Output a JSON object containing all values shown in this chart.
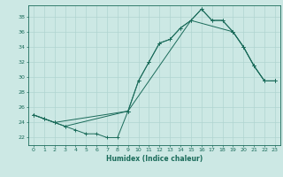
{
  "xlabel": "Humidex (Indice chaleur)",
  "bg_color": "#cce8e4",
  "line_color": "#1a6b5a",
  "grid_color": "#b0d4d0",
  "xlim": [
    -0.5,
    23.5
  ],
  "ylim": [
    21.0,
    39.5
  ],
  "xticks": [
    0,
    1,
    2,
    3,
    4,
    5,
    6,
    7,
    8,
    9,
    10,
    11,
    12,
    13,
    14,
    15,
    16,
    17,
    18,
    19,
    20,
    21,
    22,
    23
  ],
  "yticks": [
    22,
    24,
    26,
    28,
    30,
    32,
    34,
    36,
    38
  ],
  "line1_x": [
    0,
    1,
    2,
    3,
    4,
    5,
    6,
    7,
    8,
    9,
    10,
    11,
    12,
    13,
    14,
    15,
    16,
    17,
    18,
    19,
    20,
    21,
    22,
    23
  ],
  "line1_y": [
    25.0,
    24.5,
    24.0,
    23.5,
    23.0,
    22.5,
    22.5,
    22.0,
    22.0,
    25.5,
    29.5,
    32.0,
    34.5,
    35.0,
    36.5,
    37.5,
    39.0,
    37.5,
    37.5,
    36.0,
    34.0,
    31.5,
    29.5,
    29.5
  ],
  "line2_x": [
    0,
    1,
    2,
    3,
    9,
    10,
    11,
    12,
    13,
    14,
    15,
    16,
    17,
    18,
    19,
    20,
    21,
    22,
    23
  ],
  "line2_y": [
    25.0,
    24.5,
    24.0,
    23.5,
    25.5,
    29.5,
    32.0,
    34.5,
    35.0,
    36.5,
    37.5,
    39.0,
    37.5,
    37.5,
    36.0,
    34.0,
    31.5,
    29.5,
    29.5
  ],
  "line3_x": [
    0,
    2,
    9,
    15,
    19,
    20,
    21,
    22,
    23
  ],
  "line3_y": [
    25.0,
    24.0,
    25.5,
    37.5,
    36.0,
    34.0,
    31.5,
    29.5,
    29.5
  ],
  "tick_fontsize": 4.5,
  "xlabel_fontsize": 5.5
}
